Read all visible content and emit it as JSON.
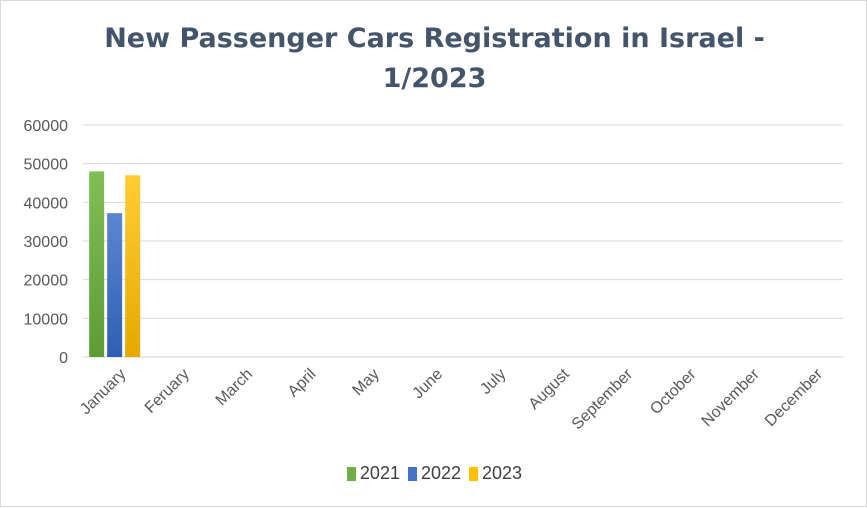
{
  "chart_data": {
    "type": "bar",
    "title_line1": "New Passenger Cars Registration in Israel -",
    "title_line2": "1/2023",
    "categories": [
      "January",
      "Feruary",
      "March",
      "April",
      "May",
      "June",
      "July",
      "August",
      "September",
      "October",
      "November",
      "December"
    ],
    "series": [
      {
        "name": "2021",
        "color": "#70ad47",
        "values": [
          48000,
          null,
          null,
          null,
          null,
          null,
          null,
          null,
          null,
          null,
          null,
          null
        ]
      },
      {
        "name": "2022",
        "color": "#4472c4",
        "values": [
          37200,
          null,
          null,
          null,
          null,
          null,
          null,
          null,
          null,
          null,
          null,
          null
        ]
      },
      {
        "name": "2023",
        "color": "#ffc000",
        "values": [
          47000,
          null,
          null,
          null,
          null,
          null,
          null,
          null,
          null,
          null,
          null,
          null
        ]
      }
    ],
    "yticks": [
      "60000",
      "50000",
      "40000",
      "30000",
      "20000",
      "10000",
      "0"
    ],
    "ylim": [
      0,
      60000
    ],
    "grid": true,
    "legend_position": "bottom"
  }
}
